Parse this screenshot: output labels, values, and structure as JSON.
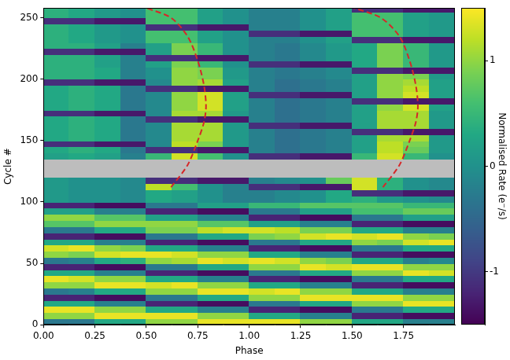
{
  "chart_data": {
    "type": "heatmap",
    "x_label": "Phase",
    "y_label": "Cycle #",
    "xlim": [
      0,
      2
    ],
    "ylim": [
      0,
      258
    ],
    "xticks": [
      {
        "value": 0,
        "label": "0.00"
      },
      {
        "value": 0.25,
        "label": "0.25"
      },
      {
        "value": 0.5,
        "label": "0.50"
      },
      {
        "value": 0.75,
        "label": "0.75"
      },
      {
        "value": 1,
        "label": "1.00"
      },
      {
        "value": 1.25,
        "label": "1.25"
      },
      {
        "value": 1.5,
        "label": "1.50"
      },
      {
        "value": 1.75,
        "label": "1.75"
      }
    ],
    "yticks": [
      0,
      50,
      100,
      150,
      200,
      250
    ],
    "grid": false,
    "cells": {
      "x_edges": [
        0,
        0.125,
        0.25,
        0.375,
        0.5,
        0.625,
        0.75,
        0.875,
        1,
        1.125,
        1.25,
        1.375,
        1.5,
        1.625,
        1.75,
        1.875,
        2
      ],
      "y_edges": [
        0,
        5,
        10,
        15,
        20,
        25,
        30,
        35,
        40,
        45,
        50,
        55,
        60,
        65,
        70,
        75,
        80,
        85,
        90,
        95,
        100,
        105,
        110,
        115,
        120,
        125,
        130,
        135,
        140,
        145,
        150,
        155,
        160,
        165,
        170,
        175,
        180,
        185,
        190,
        195,
        200,
        205,
        210,
        215,
        220,
        225,
        230,
        235,
        240,
        245,
        250,
        255,
        260
      ],
      "values": [
        [
          -0.3,
          -0.3,
          0.3,
          0.3,
          1.0,
          1.0,
          1.4,
          1.4,
          1.4,
          1.4,
          1.0,
          1.0,
          0.3,
          0.3,
          -0.2,
          -0.2
        ],
        [
          1.0,
          1.0,
          1.4,
          1.4,
          1.4,
          1.4,
          1.0,
          1.0,
          0.3,
          0.3,
          -0.2,
          -0.2,
          -1.2,
          -1.2,
          -1.4,
          -1.4
        ],
        [
          1.4,
          1.4,
          1.0,
          1.0,
          0.3,
          0.3,
          -0.2,
          -0.2,
          -1.2,
          -1.2,
          -1.4,
          -1.4,
          -0.3,
          -0.3,
          0.3,
          0.3
        ],
        [
          0.3,
          0.3,
          -0.2,
          -0.2,
          -1.2,
          -1.2,
          -1.4,
          -1.4,
          -0.3,
          -0.3,
          0.3,
          0.3,
          1.0,
          1.0,
          1.4,
          1.4
        ],
        [
          -1.2,
          -1.2,
          -1.4,
          -1.4,
          -0.3,
          -0.3,
          0.3,
          0.3,
          1.0,
          1.0,
          1.4,
          1.4,
          1.4,
          1.4,
          1.0,
          1.0
        ],
        [
          -0.3,
          -0.2,
          0.3,
          0.3,
          1.0,
          1.0,
          1.4,
          1.4,
          1.3,
          1.4,
          1.0,
          1.0,
          0.3,
          0.3,
          -0.2,
          -0.2
        ],
        [
          1.0,
          1.0,
          1.4,
          1.4,
          1.3,
          1.4,
          1.0,
          1.0,
          0.3,
          0.3,
          -0.2,
          -0.2,
          -1.2,
          -1.2,
          -1.4,
          -1.4
        ],
        [
          1.4,
          1.3,
          1.0,
          1.0,
          0.3,
          0.3,
          -0.2,
          -0.2,
          -1.2,
          -1.2,
          -1.4,
          -1.4,
          -0.3,
          -0.3,
          0.3,
          0.3
        ],
        [
          0.3,
          0.3,
          -0.2,
          -0.2,
          -1.2,
          -1.2,
          -1.4,
          -1.4,
          -0.3,
          -0.3,
          0.3,
          0.3,
          1.0,
          1.0,
          1.4,
          1.3
        ],
        [
          -1.2,
          -1.2,
          -1.4,
          -1.4,
          -0.3,
          -0.3,
          0.3,
          0.3,
          1.0,
          1.0,
          1.4,
          1.3,
          1.4,
          1.4,
          1.0,
          1.0
        ],
        [
          -0.3,
          -0.2,
          0.3,
          0.4,
          1.0,
          1.1,
          1.4,
          1.3,
          1.4,
          1.3,
          1.0,
          0.9,
          0.3,
          0.3,
          -0.2,
          -0.1
        ],
        [
          1.0,
          0.9,
          1.3,
          1.4,
          1.4,
          1.3,
          1.0,
          1.0,
          0.3,
          0.3,
          -0.2,
          -0.2,
          -1.2,
          -1.2,
          -1.4,
          -1.4
        ],
        [
          1.3,
          1.4,
          1.0,
          0.9,
          0.3,
          0.3,
          -0.2,
          -0.2,
          -1.2,
          -1.2,
          -1.4,
          -1.4,
          -0.3,
          -0.3,
          0.3,
          0.3
        ],
        [
          0.3,
          0.3,
          -0.2,
          -0.2,
          -1.2,
          -1.2,
          -1.4,
          -1.4,
          -0.3,
          -0.3,
          0.3,
          0.3,
          1.0,
          0.9,
          1.3,
          1.4
        ],
        [
          -1.2,
          -1.2,
          -1.4,
          -1.4,
          -0.3,
          -0.3,
          0.3,
          0.3,
          0.9,
          1.0,
          1.3,
          1.4,
          1.3,
          1.4,
          1.0,
          0.9
        ],
        [
          -0.3,
          -0.3,
          0.3,
          0.3,
          0.9,
          0.9,
          1.2,
          1.3,
          1.3,
          1.2,
          0.9,
          0.9,
          0.3,
          0.3,
          -0.2,
          -0.2
        ],
        [
          0.7,
          0.7,
          1.0,
          1.0,
          1.0,
          1.0,
          0.7,
          0.7,
          0.2,
          0.2,
          -0.2,
          -0.2,
          -1.2,
          -1.2,
          -1.4,
          -1.4
        ],
        [
          1.0,
          1.0,
          0.7,
          0.7,
          0.2,
          0.2,
          -0.2,
          -0.2,
          -1.2,
          -1.2,
          -1.4,
          -1.4,
          -0.3,
          -0.3,
          0.2,
          0.2
        ],
        [
          0.2,
          0.2,
          -0.2,
          -0.2,
          -1.2,
          -1.2,
          -1.4,
          -1.4,
          -0.3,
          -0.3,
          0.2,
          0.2,
          0.6,
          0.6,
          0.8,
          0.8
        ],
        [
          -1.2,
          -1.2,
          -1.4,
          -1.4,
          -0.3,
          -0.3,
          0.2,
          0.2,
          0.5,
          0.5,
          0.7,
          0.7,
          0.7,
          0.7,
          0.5,
          0.5
        ],
        [
          0.1,
          0.0,
          0.0,
          -0.1,
          0.3,
          0.2,
          0.0,
          -0.2,
          -0.2,
          -0.1,
          0.0,
          0.3,
          0.4,
          0.1,
          0.0,
          -0.1
        ],
        [
          0.1,
          0.0,
          0.0,
          -0.1,
          0.3,
          0.2,
          0.0,
          -0.2,
          -0.2,
          -0.1,
          0.0,
          0.3,
          -1.1,
          -1.1,
          -1.3,
          -1.3
        ],
        [
          0.1,
          0.0,
          0.0,
          -0.1,
          1.2,
          0.6,
          0.0,
          -0.2,
          -1.1,
          -1.1,
          -1.3,
          -1.3,
          1.3,
          0.4,
          0.0,
          -0.1
        ],
        [
          0.1,
          0.0,
          0.0,
          -0.1,
          -1.1,
          -1.1,
          -1.3,
          -1.3,
          -0.2,
          -0.1,
          0.0,
          0.8,
          1.3,
          0.4,
          0.0,
          -0.1
        ],
        [
          null,
          null,
          null,
          null,
          null,
          null,
          null,
          null,
          null,
          null,
          null,
          null,
          null,
          null,
          null,
          null
        ],
        [
          null,
          null,
          null,
          null,
          null,
          null,
          null,
          null,
          null,
          null,
          null,
          null,
          null,
          null,
          null,
          null
        ],
        [
          null,
          null,
          null,
          null,
          null,
          null,
          null,
          null,
          null,
          null,
          null,
          null,
          null,
          null,
          null,
          null
        ],
        [
          0.2,
          0.3,
          0.2,
          -0.2,
          0.5,
          1.3,
          0.6,
          0.0,
          -1.1,
          -1.1,
          -1.3,
          -1.3,
          0.5,
          1.3,
          0.5,
          0.0
        ],
        [
          0.3,
          0.4,
          0.3,
          -0.3,
          -1.1,
          -1.1,
          -1.3,
          -1.3,
          -0.2,
          -0.4,
          -0.3,
          -0.2,
          0.2,
          1.2,
          0.8,
          0.1
        ],
        [
          -1.1,
          -1.1,
          -1.3,
          -1.3,
          -0.1,
          1.2,
          0.9,
          0.1,
          -0.2,
          -0.4,
          -0.3,
          -0.2,
          0.2,
          1.2,
          0.9,
          0.1
        ],
        [
          0.3,
          0.4,
          0.3,
          -0.3,
          -0.1,
          1.1,
          1.1,
          0.1,
          -0.2,
          -0.4,
          -0.3,
          -0.2,
          0.2,
          1.1,
          1.1,
          0.1
        ],
        [
          0.3,
          0.4,
          0.3,
          -0.3,
          -0.1,
          1.1,
          1.1,
          0.1,
          -0.2,
          -0.4,
          -0.3,
          -0.2,
          -1.1,
          -1.1,
          -1.3,
          -1.3
        ],
        [
          0.3,
          0.4,
          0.3,
          -0.3,
          -0.1,
          1.1,
          1.1,
          0.1,
          -1.1,
          -1.1,
          -1.3,
          -1.3,
          0.2,
          1.1,
          1.1,
          0.1
        ],
        [
          0.3,
          0.4,
          0.3,
          -0.3,
          -1.1,
          -1.1,
          -1.3,
          -1.3,
          -0.2,
          -0.4,
          -0.3,
          -0.2,
          0.2,
          1.1,
          1.1,
          0.1
        ],
        [
          -1.1,
          -1.1,
          -1.3,
          -1.3,
          -0.1,
          1.1,
          1.1,
          0.1,
          -0.2,
          -0.4,
          -0.3,
          -0.2,
          0.2,
          1.1,
          1.1,
          0.1
        ],
        [
          0.3,
          0.4,
          0.3,
          -0.3,
          -0.1,
          1.0,
          1.3,
          0.2,
          -0.2,
          -0.4,
          -0.3,
          -0.2,
          0.2,
          1.0,
          1.3,
          0.2
        ],
        [
          0.3,
          0.4,
          0.3,
          -0.3,
          -0.1,
          1.0,
          1.3,
          0.2,
          -0.2,
          -0.4,
          -0.3,
          -0.2,
          -1.1,
          -1.1,
          -1.3,
          -1.3
        ],
        [
          0.3,
          0.4,
          0.3,
          -0.3,
          -0.1,
          1.0,
          1.3,
          0.2,
          -1.1,
          -1.1,
          -1.3,
          -1.3,
          0.2,
          1.0,
          1.3,
          0.2
        ],
        [
          0.3,
          0.4,
          0.3,
          -0.3,
          -1.1,
          -1.1,
          -1.3,
          -1.3,
          -0.2,
          -0.4,
          -0.3,
          -0.2,
          0.2,
          1.0,
          1.2,
          0.2
        ],
        [
          -1.1,
          -1.1,
          -1.3,
          -1.3,
          -0.1,
          1.0,
          1.1,
          0.2,
          -0.2,
          -0.4,
          -0.3,
          -0.2,
          0.2,
          1.0,
          1.1,
          0.2
        ],
        [
          0.4,
          0.4,
          0.3,
          -0.2,
          0.0,
          1.0,
          0.9,
          0.1,
          -0.2,
          -0.3,
          -0.2,
          -0.1,
          0.2,
          1.0,
          0.9,
          0.1
        ],
        [
          0.4,
          0.4,
          0.3,
          -0.2,
          0.0,
          1.0,
          0.9,
          0.1,
          -0.2,
          -0.3,
          -0.2,
          -0.1,
          -1.1,
          -1.1,
          -1.3,
          -1.3
        ],
        [
          0.4,
          0.4,
          0.2,
          -0.2,
          0.2,
          0.9,
          0.5,
          0.0,
          -1.1,
          -1.1,
          -1.3,
          -1.3,
          0.3,
          0.9,
          0.5,
          0.1
        ],
        [
          0.4,
          0.4,
          0.2,
          -0.2,
          -1.1,
          -1.1,
          -1.3,
          -1.3,
          -0.2,
          -0.3,
          -0.1,
          0.1,
          0.3,
          0.9,
          0.5,
          0.1
        ],
        [
          -1.1,
          -1.1,
          -1.3,
          -1.3,
          0.2,
          0.9,
          0.5,
          0.0,
          -0.2,
          -0.3,
          -0.1,
          0.1,
          0.3,
          0.9,
          0.5,
          0.1
        ],
        [
          0.4,
          0.4,
          0.2,
          -0.2,
          0.2,
          0.9,
          0.5,
          0.0,
          -0.2,
          -0.3,
          -0.1,
          0.1,
          0.3,
          0.9,
          0.5,
          0.1
        ],
        [
          0.4,
          0.3,
          0.1,
          0.0,
          0.6,
          0.6,
          0.2,
          0.0,
          -0.2,
          -0.2,
          0.0,
          0.2,
          -1.1,
          -1.1,
          -1.3,
          -1.3
        ],
        [
          0.4,
          0.3,
          0.1,
          0.0,
          0.6,
          0.6,
          0.2,
          0.0,
          -1.1,
          -1.1,
          -1.3,
          -1.3,
          0.6,
          0.6,
          0.2,
          0.1
        ],
        [
          0.4,
          0.3,
          0.1,
          0.0,
          -1.1,
          -1.1,
          -1.3,
          -1.3,
          -0.2,
          -0.2,
          0.0,
          0.2,
          0.6,
          0.6,
          0.2,
          0.1
        ],
        [
          -1.1,
          -1.1,
          -1.3,
          -1.3,
          0.6,
          0.6,
          0.2,
          0.0,
          -0.2,
          -0.2,
          0.0,
          0.2,
          0.6,
          0.6,
          0.2,
          0.1
        ],
        [
          0.4,
          0.3,
          0.1,
          0.0,
          0.6,
          0.6,
          0.2,
          0.0,
          -0.2,
          -0.2,
          0.0,
          0.2,
          0.6,
          0.6,
          0.2,
          0.1
        ],
        [
          0.4,
          0.3,
          0.1,
          0.0,
          0.6,
          0.6,
          0.2,
          0.0,
          -0.2,
          -0.2,
          0.0,
          0.2,
          -1.1,
          -1.1,
          -1.3,
          -1.3
        ]
      ]
    },
    "colorbar": {
      "label": "Normalised Rate (e⁻/s)",
      "range": [
        -1.5,
        1.5
      ],
      "ticks": [
        -1,
        0,
        1
      ]
    },
    "curves": [
      {
        "color": "#d62728",
        "line_style": "dashed",
        "x": [
          0.62,
          0.7,
          0.75,
          0.78,
          0.79,
          0.78,
          0.75,
          0.7,
          0.62,
          0.5
        ],
        "y": [
          112,
          130,
          150,
          165,
          178,
          195,
          215,
          235,
          250,
          258
        ]
      },
      {
        "color": "#d62728",
        "line_style": "dashed",
        "x": [
          1.65,
          1.73,
          1.78,
          1.81,
          1.82,
          1.81,
          1.78,
          1.73,
          1.64,
          1.51
        ],
        "y": [
          112,
          130,
          150,
          165,
          178,
          195,
          215,
          235,
          250,
          258
        ]
      }
    ]
  }
}
